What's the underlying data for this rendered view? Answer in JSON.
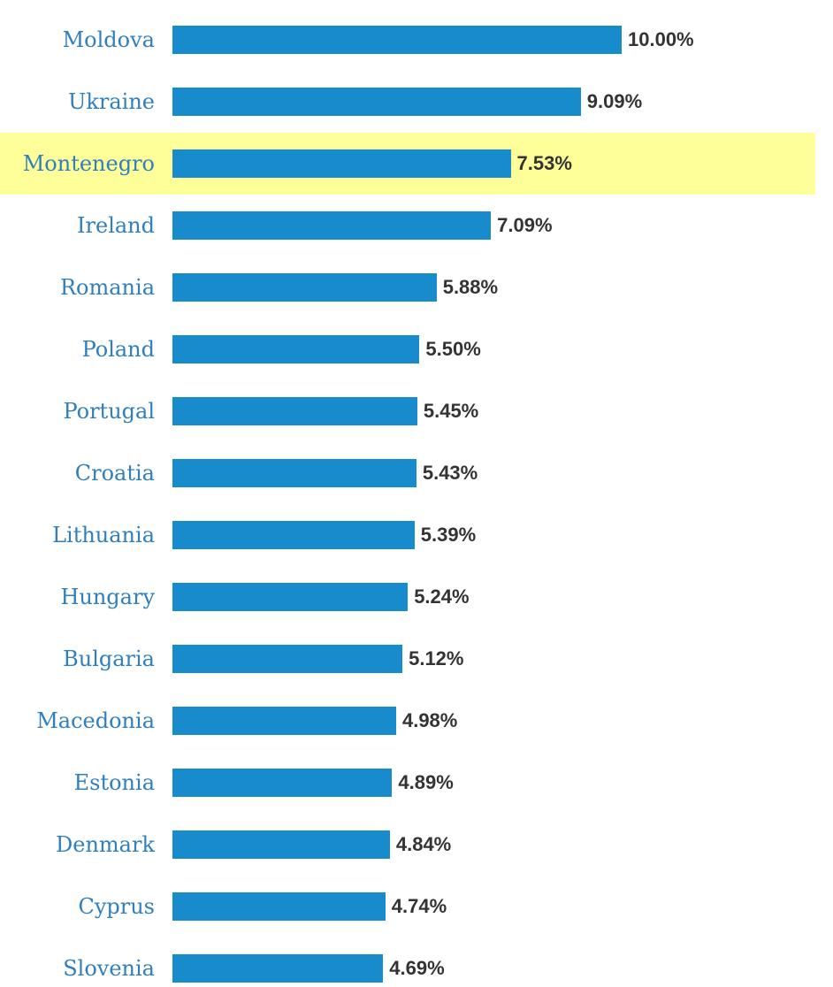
{
  "chart_data": {
    "type": "bar",
    "orientation": "horizontal",
    "categories": [
      "Moldova",
      "Ukraine",
      "Montenegro",
      "Ireland",
      "Romania",
      "Poland",
      "Portugal",
      "Croatia",
      "Lithuania",
      "Hungary",
      "Bulgaria",
      "Macedonia",
      "Estonia",
      "Denmark",
      "Cyprus",
      "Slovenia"
    ],
    "values": [
      10.0,
      9.09,
      7.53,
      7.09,
      5.88,
      5.5,
      5.45,
      5.43,
      5.39,
      5.24,
      5.12,
      4.98,
      4.89,
      4.84,
      4.74,
      4.69
    ],
    "value_labels": [
      "10.00%",
      "9.09%",
      "7.53%",
      "7.09%",
      "5.88%",
      "5.50%",
      "5.45%",
      "5.43%",
      "5.39%",
      "5.24%",
      "5.12%",
      "4.98%",
      "4.89%",
      "4.84%",
      "4.74%",
      "4.69%"
    ],
    "highlighted_category": "Montenegro",
    "xlim": [
      0,
      10
    ],
    "grid": false,
    "colors": {
      "bar": "#188bcc",
      "label": "#2f7fbf",
      "value": "#333333",
      "highlight": "#ffff99"
    }
  }
}
